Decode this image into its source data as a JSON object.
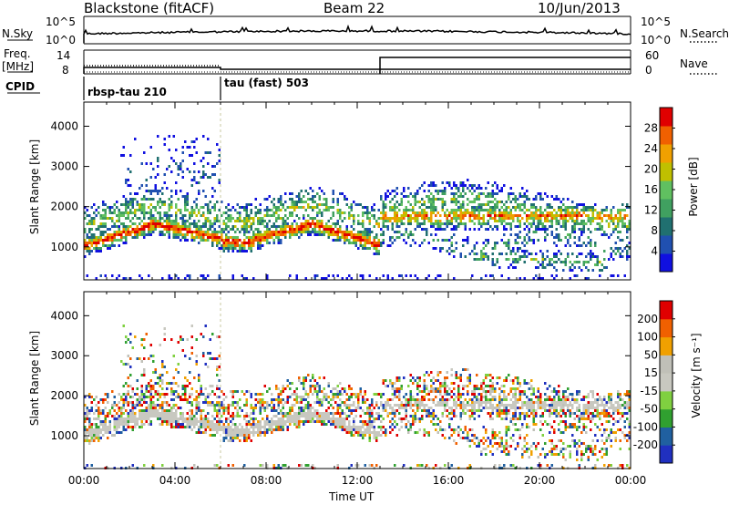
{
  "header": {
    "station": "Blackstone (fitACF)",
    "beam": "Beam 22",
    "date": "10/Jun/2013"
  },
  "panels": {
    "nsky_label": "N.Sky",
    "nsearch_label": "N.Search",
    "nsky_ticks": [
      "10^5",
      "10^0"
    ],
    "nsearch_ticks": [
      "10^5",
      "10^0"
    ],
    "freq_label_line1": "Freq.",
    "freq_label_line2": "[MHz]",
    "freq_ticks": [
      "14",
      "8"
    ],
    "nave_label": "Nave",
    "nave_ticks": [
      "60",
      "0"
    ],
    "cpid_label": "CPID",
    "cpid_modes": [
      {
        "name": "rbsp-tau 210",
        "start_hour": 0
      },
      {
        "name": "tau (fast) 503",
        "start_hour": 6
      }
    ]
  },
  "colors": {
    "scale": [
      "#1010e0",
      "#2050b0",
      "#207070",
      "#40a060",
      "#60c060",
      "#c0c000",
      "#f0a000",
      "#f06000",
      "#e00000"
    ],
    "velocity_scale": [
      "#2030c0",
      "#2060a0",
      "#30a030",
      "#80d040",
      "#c8c8c0",
      "#c0c0b8",
      "#f0a000",
      "#f06000",
      "#e00000"
    ]
  },
  "chart_data": [
    {
      "type": "heatmap",
      "title": "Power",
      "ylabel": "Slant Range [km]",
      "xlabel": "Time UT",
      "x_range_hours": [
        0,
        24
      ],
      "ylim": [
        180,
        4600
      ],
      "x_tick_labels": [
        "00:00",
        "04:00",
        "08:00",
        "12:00",
        "16:00",
        "20:00",
        "00:00"
      ],
      "y_ticks": [
        1000,
        2000,
        3000,
        4000
      ],
      "colorbar": {
        "label": "Power [dB]",
        "ticks": [
          "28",
          "24",
          "20",
          "16",
          "12",
          "8",
          "4"
        ],
        "range": [
          0,
          30
        ]
      }
    },
    {
      "type": "heatmap",
      "title": "Velocity",
      "ylabel": "Slant Range [km]",
      "xlabel": "Time UT",
      "x_range_hours": [
        0,
        24
      ],
      "ylim": [
        180,
        4600
      ],
      "x_tick_labels": [
        "00:00",
        "04:00",
        "08:00",
        "12:00",
        "16:00",
        "20:00",
        "00:00"
      ],
      "y_ticks": [
        1000,
        2000,
        3000,
        4000
      ],
      "colorbar": {
        "label": "Velocity [m s⁻¹]",
        "ticks": [
          "200",
          "100",
          "50",
          "15",
          "-15",
          "-50",
          "-100",
          "-200"
        ],
        "range": [
          -300,
          300
        ]
      }
    }
  ]
}
